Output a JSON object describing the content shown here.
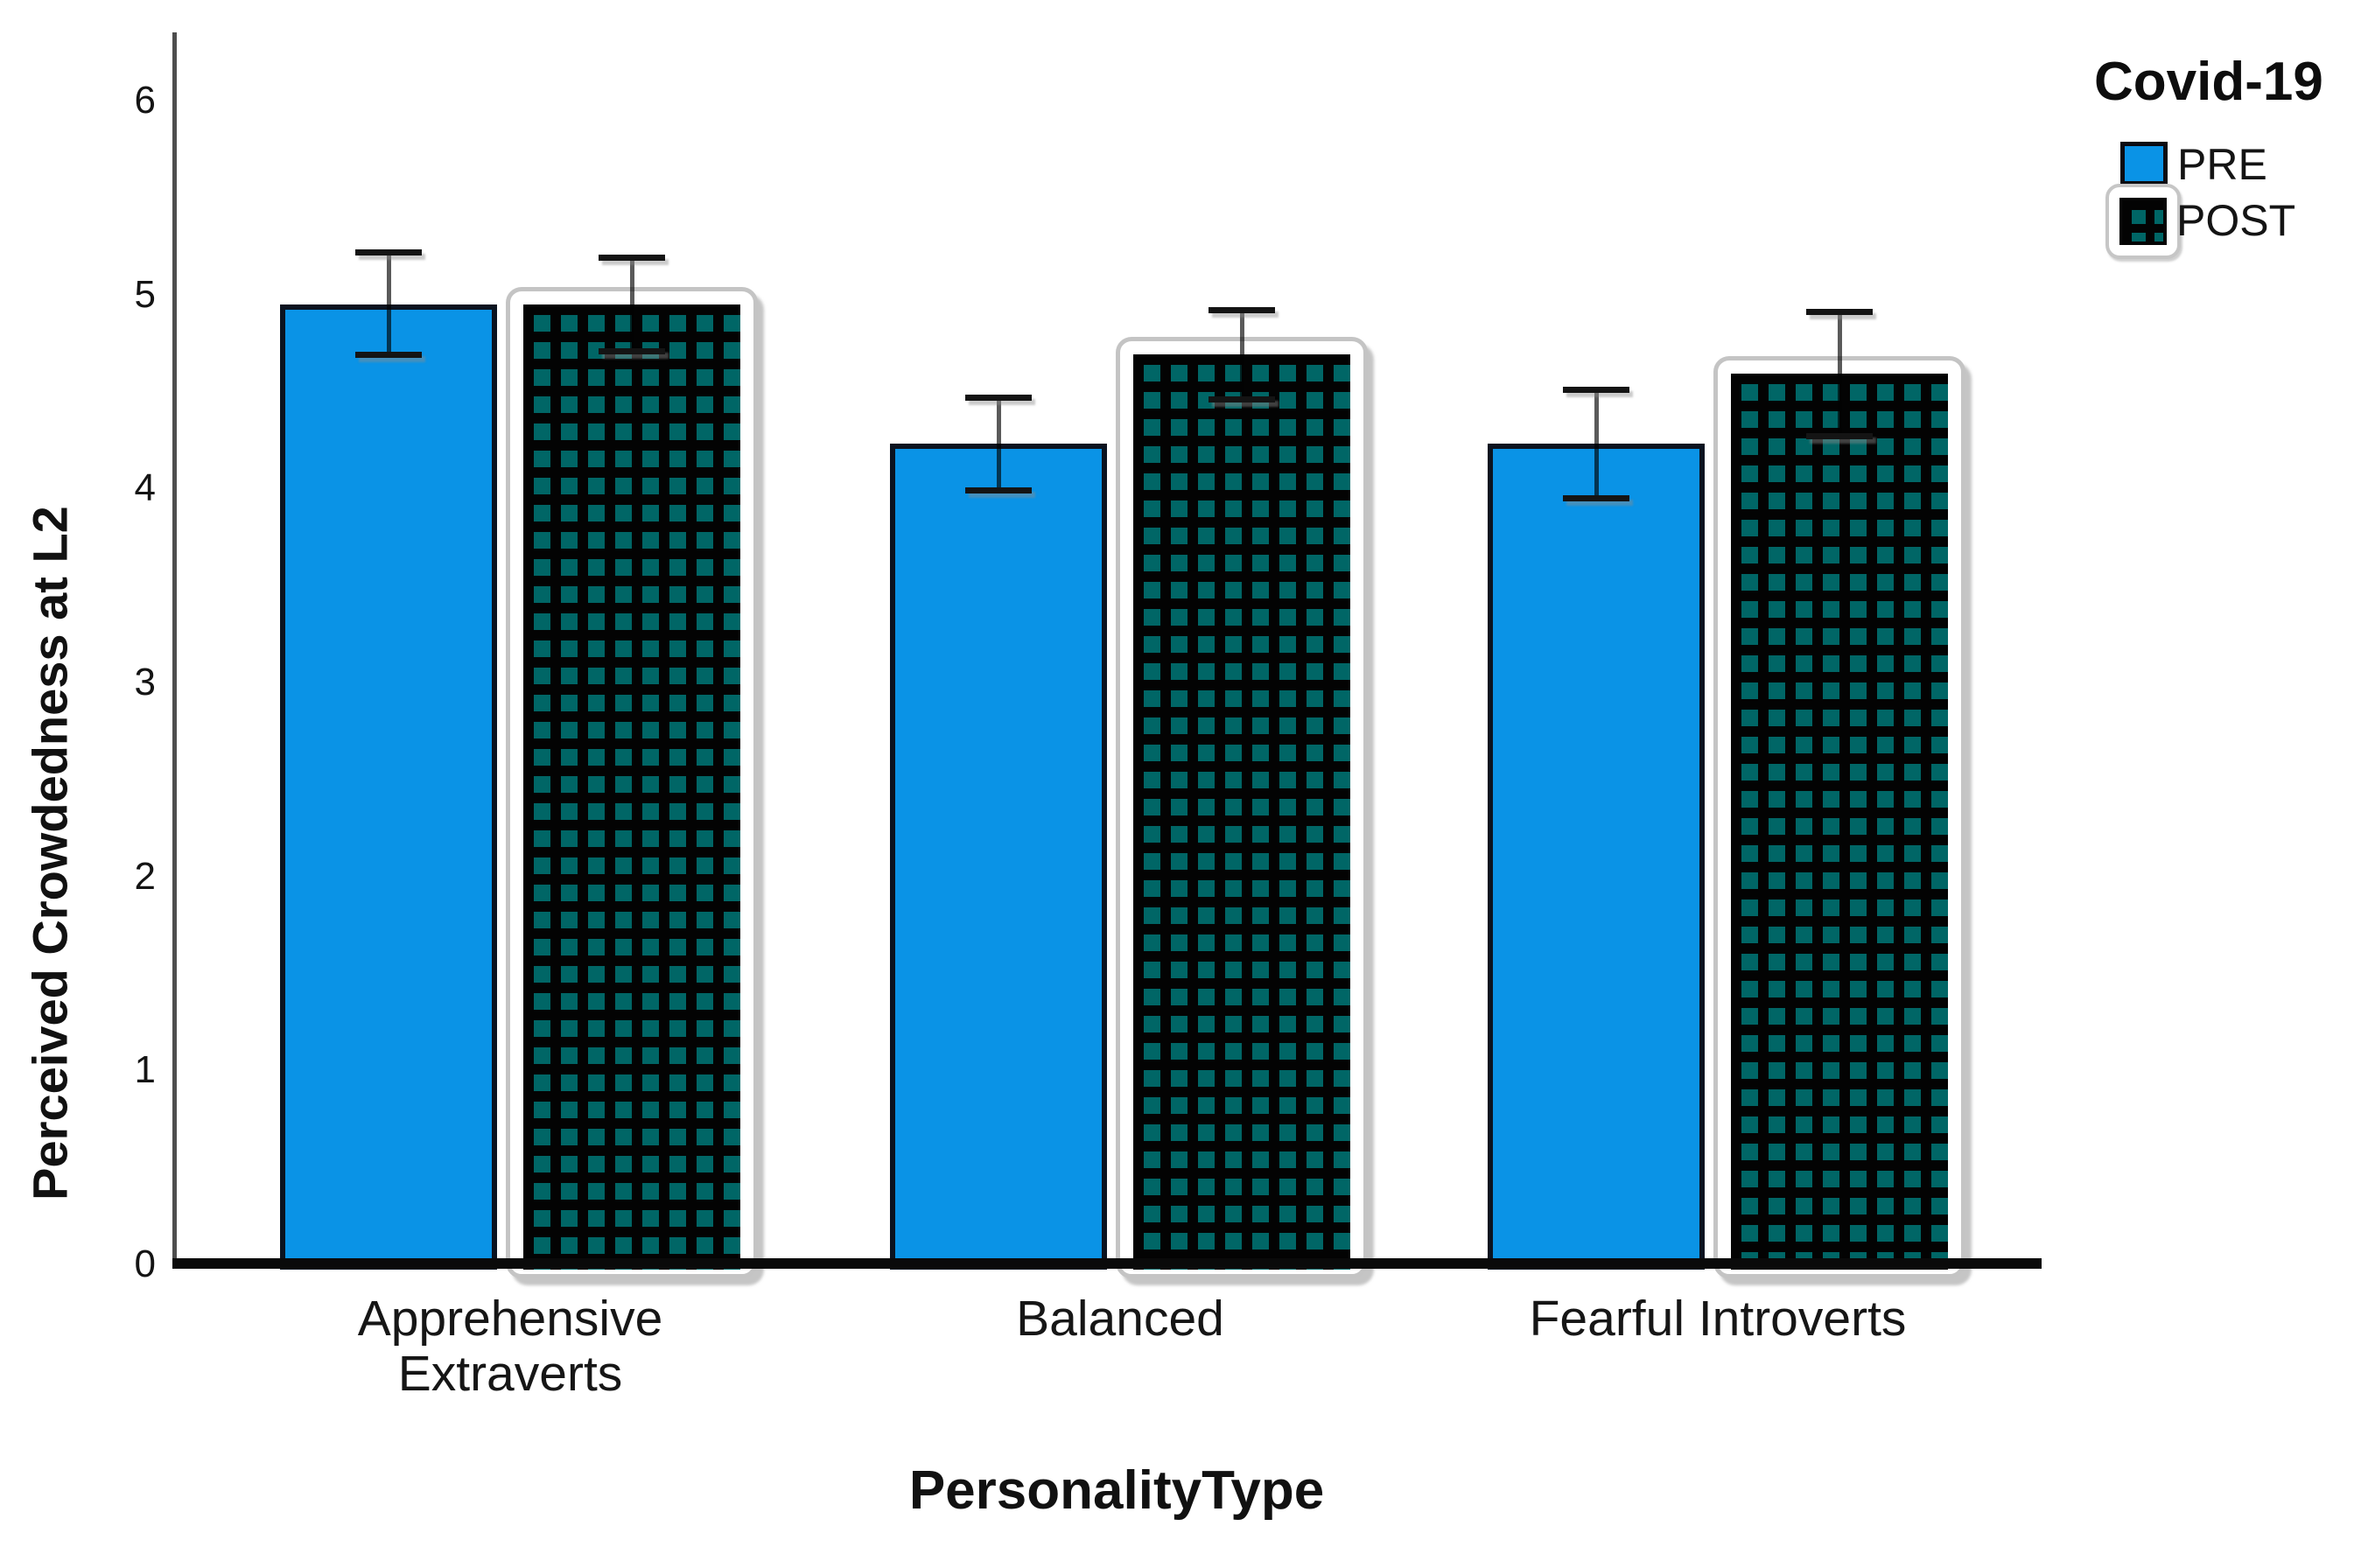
{
  "chart_data": {
    "type": "bar",
    "title": "",
    "xlabel": "PersonalityType",
    "ylabel": "Perceived Crowdedness at L2",
    "categories": [
      "Apprehensive Extraverts",
      "Balanced",
      "Fearful Introverts"
    ],
    "categories_lines": [
      [
        "Apprehensive",
        "Extraverts"
      ],
      [
        "Balanced"
      ],
      [
        "Fearful Introverts"
      ]
    ],
    "yticks": [
      0,
      1,
      2,
      3,
      4,
      5,
      6
    ],
    "ylim": [
      0,
      6.35
    ],
    "grid": false,
    "error_bars": true,
    "legend_title": "Covid-19",
    "legend_position": "top-right",
    "series": [
      {
        "name": "PRE",
        "style": "solid",
        "color": "#0a93e6",
        "values": [
          4.95,
          4.23,
          4.23
        ],
        "ci_low": [
          4.69,
          3.99,
          3.95
        ],
        "ci_high": [
          5.22,
          4.47,
          4.51
        ]
      },
      {
        "name": "POST",
        "style": "teal-check-pattern-on-black-with-white-rounded-frame",
        "color": "#006666",
        "pattern_background": "#030303",
        "values": [
          4.95,
          4.69,
          4.59
        ],
        "ci_low": [
          4.71,
          4.46,
          4.27
        ],
        "ci_high": [
          5.19,
          4.92,
          4.91
        ]
      }
    ]
  }
}
